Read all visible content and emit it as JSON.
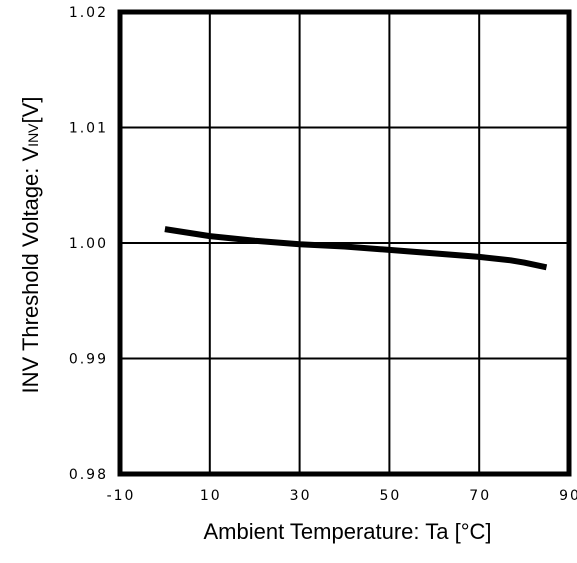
{
  "chart_data": {
    "type": "line",
    "title": "",
    "xlabel": "Ambient Temperature: Ta [°C]",
    "ylabel": {
      "prefix": "INV Threshold Voltage: V",
      "subscript": "INV",
      "suffix": "[V]"
    },
    "xlim": [
      -10,
      90
    ],
    "ylim": [
      0.98,
      1.02
    ],
    "x_ticks": [
      "-10",
      "10",
      "30",
      "50",
      "70",
      "90"
    ],
    "y_ticks": [
      "1.02",
      "1.01",
      "1.00",
      "0.99",
      "0.98"
    ],
    "grid": true,
    "series": [
      {
        "x": [
          0,
          10,
          20,
          30,
          40,
          50,
          60,
          70,
          77,
          80,
          85
        ],
        "y": [
          1.0012,
          1.0006,
          1.0002,
          0.9999,
          0.9997,
          0.9994,
          0.9991,
          0.9988,
          0.9985,
          0.9983,
          0.9979
        ]
      }
    ]
  }
}
